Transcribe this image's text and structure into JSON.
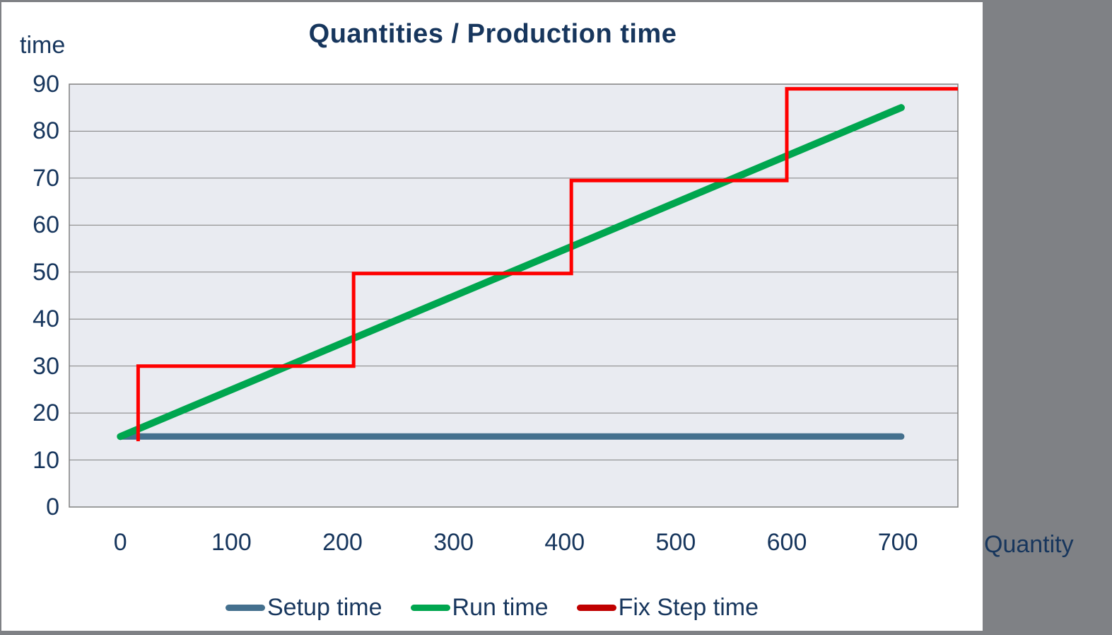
{
  "window": {
    "frame_color": "#7F8185",
    "canvas_color": "#FFFFFF"
  },
  "chart_data": {
    "type": "line",
    "title": "Quantities / Production time",
    "y_axis_label": "time",
    "x_axis_label": "Quantity",
    "x_ticks": [
      0,
      100,
      200,
      300,
      400,
      500,
      600,
      700
    ],
    "y_ticks": [
      0,
      10,
      20,
      30,
      40,
      50,
      60,
      70,
      80,
      90
    ],
    "xlim": [
      -46,
      754
    ],
    "ylim": [
      0,
      90
    ],
    "grid": "horizontal",
    "legend_position": "bottom",
    "plot_bg": "#E9EBF1",
    "grid_color": "#808080",
    "text_color": "#17365D",
    "series": [
      {
        "name": "Setup time",
        "color": "#44708E",
        "legend_color": "#44708E",
        "width": 9,
        "cap": "round",
        "points": [
          [
            2,
            15
          ],
          [
            703,
            15
          ]
        ]
      },
      {
        "name": "Run time",
        "color": "#00A64F",
        "legend_color": "#00A64F",
        "width": 10,
        "cap": "round",
        "points": [
          [
            0,
            15
          ],
          [
            703,
            85
          ]
        ]
      },
      {
        "name": "Fix Step time",
        "color": "#FF0000",
        "legend_color": "#C00000",
        "width": 5,
        "cap": "butt",
        "points": [
          [
            16,
            14
          ],
          [
            16,
            30
          ],
          [
            210,
            30
          ],
          [
            210,
            49.7
          ],
          [
            406,
            49.7
          ],
          [
            406,
            69.5
          ],
          [
            600,
            69.5
          ],
          [
            600,
            89
          ],
          [
            754,
            89
          ]
        ]
      }
    ]
  }
}
